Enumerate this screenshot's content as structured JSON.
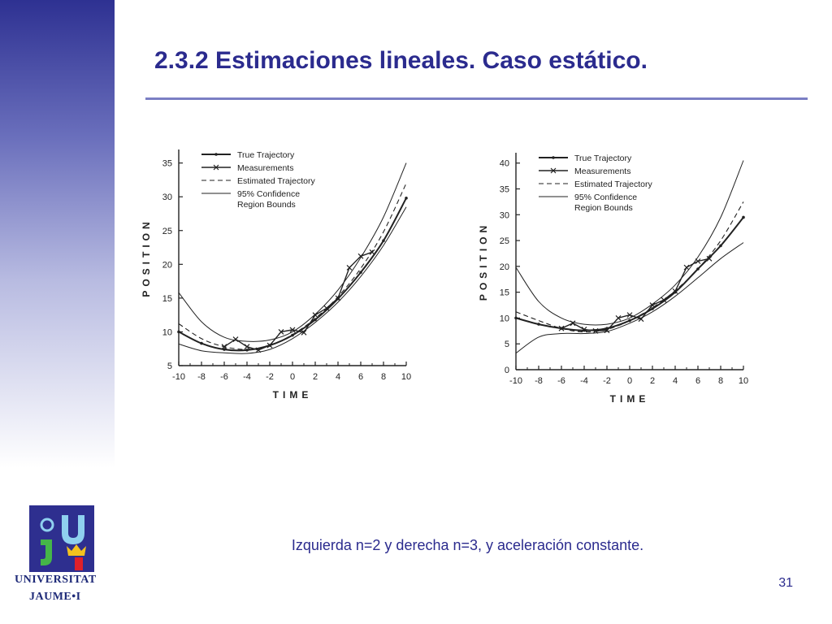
{
  "slide": {
    "title": "2.3.2 Estimaciones lineales. Caso estático.",
    "caption": "Izquierda n=2 y derecha n=3, y aceleración constante.",
    "page_number": "31",
    "logo": {
      "line1": "UNIVERSITAT",
      "line2": "JAUME•I"
    }
  },
  "colors": {
    "title": "#2b2b8e",
    "sidebar_top": "#2e3192",
    "rule": "#7b7fc4",
    "ink": "#222222"
  },
  "chart_data": [
    {
      "type": "line",
      "xlabel": "TIME",
      "ylabel": "POSITION",
      "xlim": [
        -10,
        10
      ],
      "ylim": [
        5,
        37
      ],
      "xticks": [
        -10,
        -8,
        -6,
        -4,
        -2,
        0,
        2,
        4,
        6,
        8,
        10
      ],
      "yticks": [
        5,
        10,
        15,
        20,
        25,
        30,
        35
      ],
      "legend": [
        {
          "label": "True Trajectory"
        },
        {
          "label": "Measurements"
        },
        {
          "label": "Estimated Trajectory"
        },
        {
          "label": "95% Confidence Region Bounds"
        }
      ],
      "series": [
        {
          "name": "True Trajectory",
          "style": "solid-dot",
          "x": [
            -10,
            -8,
            -6,
            -4,
            -2,
            0,
            2,
            4,
            6,
            8,
            10
          ],
          "y": [
            10.0,
            8.3,
            7.4,
            7.3,
            8.0,
            9.5,
            11.8,
            14.9,
            18.8,
            23.5,
            29.8
          ]
        },
        {
          "name": "Measurements",
          "style": "solid-x",
          "x": [
            -6,
            -5,
            -4,
            -3,
            -2,
            -1,
            0,
            1,
            2,
            3,
            4,
            5,
            6,
            7
          ],
          "y": [
            7.8,
            8.9,
            7.8,
            7.3,
            8.0,
            10.0,
            10.3,
            9.9,
            12.5,
            13.5,
            15.0,
            19.5,
            21.2,
            21.8
          ]
        },
        {
          "name": "Estimated Trajectory",
          "style": "dashed",
          "x": [
            -10,
            -8,
            -6,
            -4,
            -2,
            0,
            2,
            4,
            6,
            8,
            10
          ],
          "y": [
            11.2,
            9.0,
            7.8,
            7.4,
            8.0,
            9.6,
            12.0,
            15.2,
            19.4,
            24.8,
            32.0
          ]
        },
        {
          "name": "95% Upper Bound",
          "style": "thin",
          "x": [
            -10,
            -8,
            -6,
            -4,
            -2,
            0,
            2,
            4,
            6,
            8,
            10
          ],
          "y": [
            15.8,
            11.5,
            9.2,
            8.6,
            8.8,
            10.0,
            12.6,
            16.2,
            21.0,
            27.0,
            35.0
          ]
        },
        {
          "name": "95% Lower Bound",
          "style": "thin",
          "x": [
            -10,
            -8,
            -6,
            -4,
            -2,
            0,
            2,
            4,
            6,
            8,
            10
          ],
          "y": [
            8.2,
            7.2,
            6.9,
            6.8,
            7.4,
            9.0,
            11.4,
            14.4,
            18.2,
            22.8,
            28.5
          ]
        }
      ]
    },
    {
      "type": "line",
      "xlabel": "TIME",
      "ylabel": "POSITION",
      "xlim": [
        -10,
        10
      ],
      "ylim": [
        0,
        42
      ],
      "xticks": [
        -10,
        -8,
        -6,
        -4,
        -2,
        0,
        2,
        4,
        6,
        8,
        10
      ],
      "yticks": [
        0,
        5,
        10,
        15,
        20,
        25,
        30,
        35,
        40
      ],
      "legend": [
        {
          "label": "True Trajectory"
        },
        {
          "label": "Measurements"
        },
        {
          "label": "Estimated Trajectory"
        },
        {
          "label": "95% Confidence Region Bounds"
        }
      ],
      "series": [
        {
          "name": "True Trajectory",
          "style": "solid-dot",
          "x": [
            -10,
            -8,
            -6,
            -4,
            -2,
            0,
            2,
            4,
            6,
            8,
            10
          ],
          "y": [
            10.0,
            8.8,
            8.0,
            7.6,
            8.0,
            9.5,
            11.8,
            15.0,
            19.5,
            24.0,
            29.5
          ]
        },
        {
          "name": "Measurements",
          "style": "solid-x",
          "x": [
            -6,
            -5,
            -4,
            -3,
            -2,
            -1,
            0,
            1,
            2,
            3,
            4,
            5,
            6,
            7
          ],
          "y": [
            8.0,
            9.0,
            7.8,
            7.5,
            7.6,
            10.0,
            10.6,
            9.8,
            12.5,
            13.5,
            15.2,
            19.8,
            21.0,
            21.5
          ]
        },
        {
          "name": "Estimated Trajectory",
          "style": "dashed",
          "x": [
            -10,
            -8,
            -6,
            -4,
            -2,
            0,
            2,
            4,
            6,
            8,
            10
          ],
          "y": [
            11.2,
            9.5,
            8.0,
            7.3,
            7.8,
            9.5,
            12.0,
            15.3,
            19.5,
            25.0,
            32.5
          ]
        },
        {
          "name": "95% Upper Bound",
          "style": "thin",
          "x": [
            -10,
            -8,
            -6,
            -4,
            -2,
            0,
            2,
            4,
            6,
            8,
            10
          ],
          "y": [
            19.8,
            13.2,
            10.0,
            8.8,
            8.8,
            10.0,
            12.7,
            16.4,
            21.8,
            29.5,
            40.5
          ]
        },
        {
          "name": "95% Lower Bound",
          "style": "thin",
          "x": [
            -10,
            -8,
            -6,
            -4,
            -2,
            0,
            2,
            4,
            6,
            8,
            10
          ],
          "y": [
            3.2,
            6.3,
            7.0,
            7.0,
            7.4,
            9.0,
            11.2,
            14.2,
            17.8,
            21.5,
            24.6
          ]
        }
      ]
    }
  ]
}
